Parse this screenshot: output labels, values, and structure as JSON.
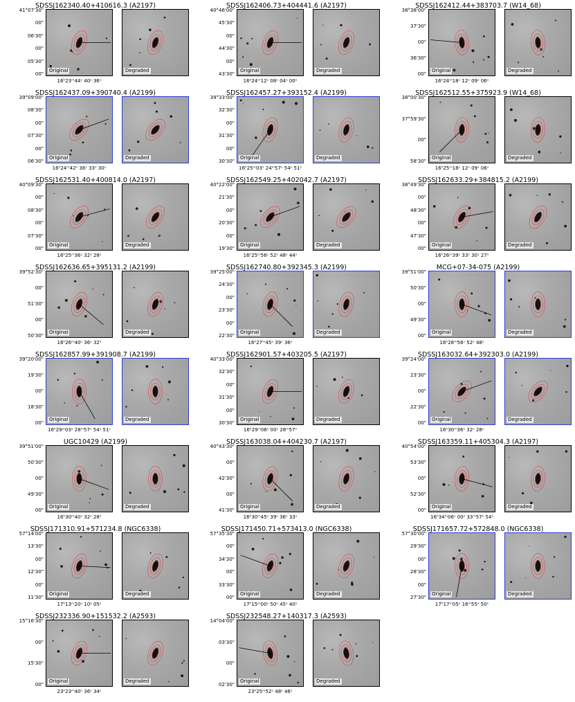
{
  "labels": {
    "original": "Original",
    "degraded": "Degraded"
  },
  "panels": [
    {
      "title": "SDSSJ162340.40+410616.3 (A2197)",
      "border": "black",
      "yticks": [
        "41°07'30\"",
        "00\"",
        "06'30\"",
        "00\"",
        "05'30\"",
        "00\""
      ],
      "xticks": "16ʰ23ᵐ44ˢ 40ˢ    36ˢ",
      "angle": 0
    },
    {
      "title": "SDSSJ162406.73+404441.6 (A2197)",
      "border": "black",
      "yticks": [
        "40°46'00\"",
        "45'30\"",
        "00\"",
        "44'30\"",
        "00\"",
        "43'30\""
      ],
      "xticks": "16ʰ24ᵐ12ˢ 08ˢ  04ˢ  00ˢ",
      "angle": 0
    },
    {
      "title": "SDSSJ162412.44+383703.7 (W14_68)",
      "border": "black",
      "yticks": [
        "38°38'00\"",
        "37'30\"",
        "00\"",
        "36'30\"",
        "00\""
      ],
      "xticks": "16ʰ24ᵐ18ˢ  12ˢ 09ˢ 06ˢ",
      "angle": 185
    },
    {
      "title": "SDSSJ162437.09+390740.4 (A2199)",
      "border": "blue",
      "yticks": [
        "39°09'00\"",
        "08'30\"",
        "00\"",
        "07'30\"",
        "00\"",
        "06'30\""
      ],
      "xticks": "16ʰ24ᵐ42ˢ  36ˢ  33ˢ  30ˢ",
      "angle": -20
    },
    {
      "title": "SDSSJ162457.27+393152.4 (A2199)",
      "border": "blue",
      "yticks": [
        "39°33'00\"",
        "32'30\"",
        "00\"",
        "31'30\"",
        "00\"",
        "30'30\""
      ],
      "xticks": "16ʰ25ᵐ03ˢ  24ᵐ57ˢ 54ˢ  51ˢ",
      "angle": 125
    },
    {
      "title": "SDSSJ162512.55+375923.9 (W14_68)",
      "border": "black",
      "yticks": [
        "38°00'30\"",
        "37°59'30\"",
        "00\"",
        "58'30\""
      ],
      "xticks": "16ʰ25ᵐ18ˢ  12ˢ 09ˢ 06ˢ",
      "angle": 135
    },
    {
      "title": "SDSSJ162531.40+400814.0 (A2197)",
      "border": "black",
      "yticks": [
        "40°09'30\"",
        "00\"",
        "08'30\"",
        "00\"",
        "07'30\"",
        "00\""
      ],
      "xticks": "16ʰ25ᵐ36ˢ 32ˢ  28ˢ",
      "angle": -15
    },
    {
      "title": "SDSSJ162549.25+402042.7 (A2197)",
      "border": "black",
      "yticks": [
        "40°22'00\"",
        "21'30\"",
        "00\"",
        "20'30\"",
        "00\"",
        "19'30\""
      ],
      "xticks": "16ʰ25ᵐ56ˢ 52ˢ  48ˢ  44ˢ",
      "angle": -20
    },
    {
      "title": "SDSSJ162633.29+384815.2 (A2199)",
      "border": "black",
      "yticks": [
        "38°49'30\"",
        "00\"",
        "48'30\"",
        "00\"",
        "47'30\"",
        "00\""
      ],
      "xticks": "16ʰ26ᵐ39ˢ  33ˢ 30ˢ 27ˢ",
      "angle": -10
    },
    {
      "title": "SDSSJ162636.65+395131.2 (A2199)",
      "border": "black",
      "yticks": [
        "39°52'30\"",
        "00\"",
        "51'30\"",
        "00\"",
        "50'30\""
      ],
      "xticks": "16ʰ26ᵐ40ˢ 36ˢ  32ˢ",
      "angle": 40
    },
    {
      "title": "SDSSJ162740.80+392345.3 (A2199)",
      "border": "blue",
      "yticks": [
        "39°25'00\"",
        "24'30\"",
        "00\"",
        "23'30\"",
        "00\"",
        "22'30\""
      ],
      "xticks": "16ʰ27ᵐ45ˢ  39ˢ  36ˢ",
      "angle": 45
    },
    {
      "title": "MCG+07-34-075 (A2199)",
      "border": "blue",
      "yticks": [
        "39°51'00\"",
        "50'30\"",
        "00\"",
        "49'30\"",
        "00\""
      ],
      "xticks": "16ʰ28ᵐ56ˢ 52ˢ  48ˢ",
      "angle": 20
    },
    {
      "title": "SDSSJ162857.99+391908.7 (A2199)",
      "border": "blue",
      "yticks": [
        "39°20'00\"",
        "19'30\"",
        "00\"",
        "18'30\"",
        "00\""
      ],
      "xticks": "16ʰ29ᵐ03ˢ 28ᵐ57ˢ 54ˢ 51ˢ",
      "angle": 60
    },
    {
      "title": "SDSSJ162901.57+403205.5 (A2197)",
      "border": "black",
      "yticks": [
        "40°33'00\"",
        "32'30\"",
        "00\"",
        "31'30\"",
        "00\"",
        "30'30\""
      ],
      "xticks": "16ʰ29ᵐ06ˢ  00ˢ 28ᵐ57ˢ",
      "angle": 0
    },
    {
      "title": "SDSSJ163032.64+392303.0 (A2199)",
      "border": "blue",
      "yticks": [
        "39°24'00\"",
        "23'30\"",
        "00\"",
        "22'30\"",
        "00\""
      ],
      "xticks": "16ʰ30ᵐ36ˢ 32ˢ  28ˢ",
      "angle": -20
    },
    {
      "title": "UGC10429 (A2199)",
      "border": "black",
      "yticks": [
        "39°51'00\"",
        "50'30\"",
        "00\"",
        "49'30\"",
        "00\""
      ],
      "xticks": "16ʰ30ᵐ40ˢ  32ˢ  28ˢ",
      "angle": 20
    },
    {
      "title": "SDSSJ163038.04+404230.7 (A2197)",
      "border": "black",
      "yticks": [
        "40°43'30\"",
        "00\"",
        "42'30\"",
        "00\"",
        "41'30\""
      ],
      "xticks": "16ʰ30ᵐ45ˢ  39ˢ 36ˢ 33ˢ",
      "angle": 45
    },
    {
      "title": "SDSSJ163359.11+405304.3 (A2197)",
      "border": "black",
      "yticks": [
        "40°54'00\"",
        "53'30\"",
        "00\"",
        "52'30\"",
        "00\""
      ],
      "xticks": "16ʰ34ᵐ06ˢ 00ˢ 33ᵐ57ˢ 54ˢ",
      "angle": 15
    },
    {
      "title": "SDSSJ171310.91+571234.8 (NGC6338)",
      "border": "black",
      "yticks": [
        "57°14'00\"",
        "13'30\"",
        "00\"",
        "12'30\"",
        "00\"",
        "11'30\""
      ],
      "xticks": "17ʰ13ᵐ20ˢ  10ˢ 05ˢ",
      "angle": 3
    },
    {
      "title": "SDSSJ171450.71+573413.0 (NGC6338)",
      "border": "black",
      "yticks": [
        "57°35'30\"",
        "00\"",
        "34'30\"",
        "00\"",
        "33'30\"",
        "00\""
      ],
      "xticks": "17ʰ15ᵐ00ˢ  50ˢ 45ˢ 40ˢ",
      "angle": 200
    },
    {
      "title": "SDSSJ171657.72+572848.0 (NGC6338)",
      "border": "blue",
      "yticks": [
        "57°30'00\"",
        "29'30\"",
        "00\"",
        "28'30\"",
        "00\"",
        "27'30\""
      ],
      "xticks": "17ʰ17ᵐ05ˢ 16ᵐ55ˢ 50ˢ",
      "angle": 100
    },
    {
      "title": "SDSSJ232336.90+151532.2 (A2593)",
      "border": "black",
      "yticks": [
        "15°16'30\"",
        "00\"",
        "15'30\"",
        "00\""
      ],
      "xticks": "23ʰ23ᵐ40ˢ  36ˢ  34ˢ",
      "angle": 0
    },
    {
      "title": "SDSSJ232548.27+140317.3 (A2593)",
      "border": "black",
      "yticks": [
        "14°04'00\"",
        "03'30\"",
        "00\"",
        "02'30\""
      ],
      "xticks": "23ʰ25ᵐ52ˢ  48ˢ 46ˢ",
      "angle": 190
    }
  ]
}
